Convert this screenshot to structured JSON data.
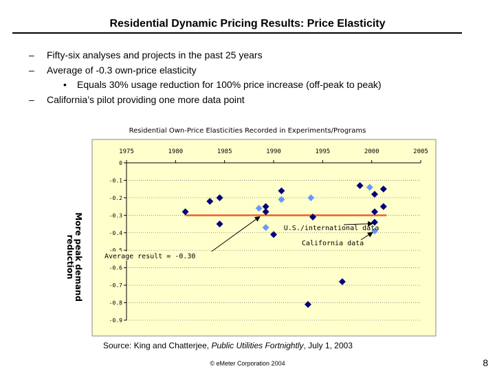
{
  "slide": {
    "title": "Residential Dynamic Pricing Results: Price Elasticity",
    "bullets": [
      "Fifty-six analyses and projects in the past 25 years",
      "Average of -0.3 own-price elasticity"
    ],
    "sub_bullet": "Equals 30% usage reduction for 100% price increase (off-peak to peak)",
    "bullet_3": "California’s pilot providing one more data point",
    "dash_symbol": "–",
    "dot_symbol": "•",
    "source_prefix": "Source: King and Chatterjee, ",
    "source_italic": "Public Utilities Fortnightly",
    "source_suffix": ", July 1, 2003",
    "footer": "© eMeter Corporation 2004",
    "page_number": "8"
  },
  "chart_data": {
    "type": "scatter",
    "title": "Residential Own-Price Elasticities Recorded in Experiments/Programs",
    "ylabel_lines": [
      "More peak demand",
      "reduction"
    ],
    "xlim": [
      1975,
      2005
    ],
    "ylim": [
      -0.9,
      0
    ],
    "x_ticks": [
      "1975",
      "1980",
      "1985",
      "1990",
      "1995",
      "2000",
      "2005"
    ],
    "y_ticks": [
      "0",
      "-0.1",
      "-0.2",
      "-0.3",
      "-0.4",
      "-0.5",
      "-0.6",
      "-0.7",
      "-0.8",
      "-0.9"
    ],
    "plot_bg": "#FFFFCC",
    "average_line": {
      "y": -0.3,
      "x_range": [
        1981,
        2001.5
      ],
      "color": "#E8602C"
    },
    "series": [
      {
        "key": "us",
        "color": "#00007A",
        "points": [
          [
            1981.0,
            -0.28
          ],
          [
            1983.5,
            -0.22
          ],
          [
            1984.5,
            -0.2
          ],
          [
            1984.5,
            -0.35
          ],
          [
            1989.2,
            -0.25
          ],
          [
            1989.2,
            -0.28
          ],
          [
            1990.0,
            -0.41
          ],
          [
            1990.8,
            -0.16
          ],
          [
            1993.5,
            -0.81
          ],
          [
            1994.0,
            -0.31
          ],
          [
            1997.0,
            -0.68
          ],
          [
            1998.8,
            -0.13
          ],
          [
            2000.3,
            -0.18
          ],
          [
            2000.3,
            -0.28
          ],
          [
            2000.3,
            -0.34
          ],
          [
            2001.2,
            -0.15
          ],
          [
            2001.2,
            -0.25
          ]
        ]
      },
      {
        "key": "ca",
        "color": "#6699FF",
        "points": [
          [
            1988.5,
            -0.26
          ],
          [
            1989.2,
            -0.37
          ],
          [
            1990.8,
            -0.21
          ],
          [
            1993.8,
            -0.2
          ],
          [
            1999.8,
            -0.14
          ],
          [
            2000.3,
            -0.39
          ]
        ]
      }
    ],
    "annotations": [
      {
        "key": "us",
        "text": "U.S./international data",
        "point_to": [
          2000.3,
          -0.34
        ]
      },
      {
        "key": "ca",
        "text": "California data",
        "point_to": [
          2000.3,
          -0.39
        ]
      },
      {
        "key": "avg",
        "text": "Average result = -0.30",
        "point_to": [
          1988.8,
          -0.3
        ]
      }
    ]
  }
}
